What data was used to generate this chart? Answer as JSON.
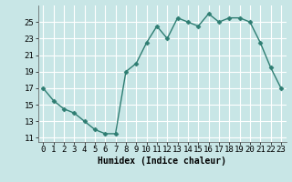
{
  "x": [
    0,
    1,
    2,
    3,
    4,
    5,
    6,
    7,
    8,
    9,
    10,
    11,
    12,
    13,
    14,
    15,
    16,
    17,
    18,
    19,
    20,
    21,
    22,
    23
  ],
  "y": [
    17,
    15.5,
    14.5,
    14,
    13,
    12,
    11.5,
    11.5,
    19,
    20,
    22.5,
    24.5,
    23,
    25.5,
    25,
    24.5,
    26,
    25,
    25.5,
    25.5,
    25,
    22.5,
    19.5,
    17
  ],
  "xlabel": "Humidex (Indice chaleur)",
  "xlim": [
    -0.5,
    23.5
  ],
  "ylim": [
    10.5,
    27
  ],
  "yticks": [
    11,
    13,
    15,
    17,
    19,
    21,
    23,
    25
  ],
  "xticks": [
    0,
    1,
    2,
    3,
    4,
    5,
    6,
    7,
    8,
    9,
    10,
    11,
    12,
    13,
    14,
    15,
    16,
    17,
    18,
    19,
    20,
    21,
    22,
    23
  ],
  "bg_color": "#c8e6e6",
  "line_color": "#2e7d72",
  "marker_size": 2.5,
  "line_width": 1.0,
  "grid_color": "#ffffff",
  "xlabel_fontsize": 7,
  "tick_fontsize": 6.5
}
